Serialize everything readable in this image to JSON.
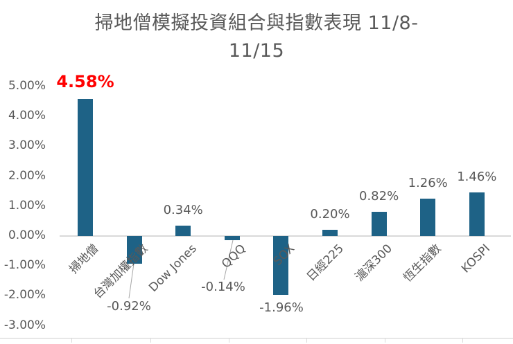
{
  "chart": {
    "title_line1": "掃地僧模擬投資組合與指數表現 11/8-",
    "title_line2": "11/15"
  },
  "chart_data": {
    "type": "bar",
    "title": "掃地僧模擬投資組合與指數表現 11/8-11/15",
    "categories": [
      "掃地僧",
      "台灣加權指數",
      "Dow Jones",
      "QQQ",
      "SOX",
      "日經225",
      "滬深300",
      "恆生指數",
      "KOSPI"
    ],
    "values": [
      4.58,
      -0.92,
      0.34,
      -0.14,
      -1.96,
      0.2,
      0.82,
      1.26,
      1.46
    ],
    "data_labels": [
      "4.58%",
      "-0.92%",
      "0.34%",
      "-0.14%",
      "-1.96%",
      "0.20%",
      "0.82%",
      "1.26%",
      "1.46%"
    ],
    "ytick_labels": [
      "5.00%",
      "4.00%",
      "3.00%",
      "2.00%",
      "1.00%",
      "0.00%",
      "-1.00%",
      "-2.00%",
      "-3.00%"
    ],
    "ylim": [
      -3,
      5
    ],
    "grid": false,
    "legend": false,
    "bar_color": "#1e6286",
    "text_color": "#595959",
    "axis_color": "#d9d9d9",
    "leader_line_color": "#a6a6a6",
    "highlight_index": 0,
    "highlight_color": "#ff0000"
  }
}
